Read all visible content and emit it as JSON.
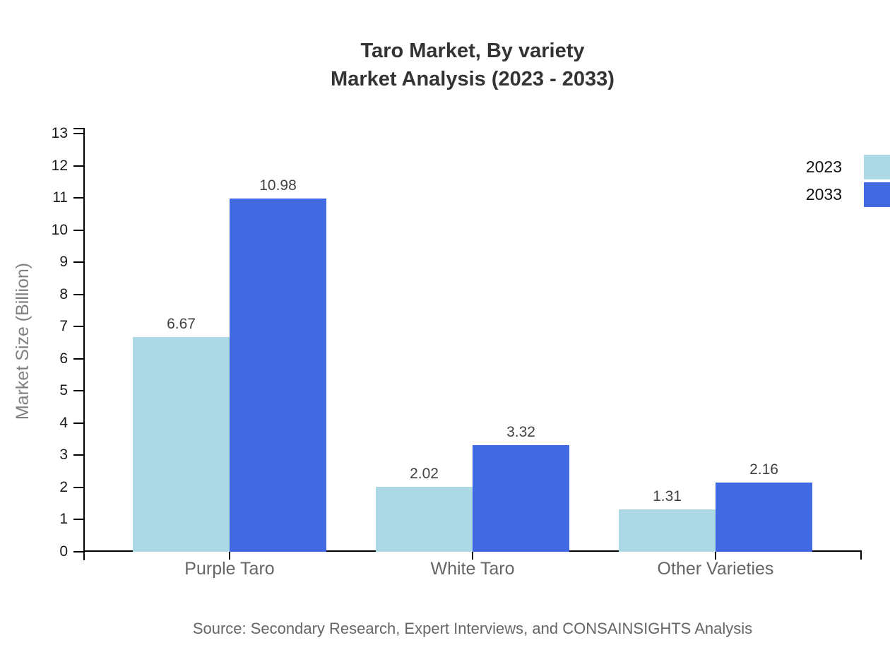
{
  "figure": {
    "title_line1": "Taro Market, By variety",
    "title_line2": "Market Analysis (2023 - 2033)",
    "source": "Source: Secondary Research, Expert Interviews, and CONSAINSIGHTS Analysis"
  },
  "chart_data": {
    "type": "bar",
    "title": "Taro Market, By variety - Market Analysis (2023 - 2033)",
    "categories": [
      "Purple Taro",
      "White Taro",
      "Other Varieties"
    ],
    "series": [
      {
        "name": "2023",
        "color": "#ADD8E6",
        "values": [
          6.67,
          2.02,
          1.31
        ]
      },
      {
        "name": "2033",
        "color": "#4169E1",
        "values": [
          10.98,
          3.32,
          2.16
        ]
      }
    ],
    "ylabel": "Market Size (Billion)",
    "xlabel": "",
    "ylim": [
      0,
      13
    ],
    "ytick_step": 1,
    "grid": false,
    "legend_position": "top-right",
    "value_labels": true
  },
  "colors": {
    "series_2023": "#ADD8E6",
    "series_2033": "#4169E1",
    "axis": "#000000",
    "title_text": "#333333",
    "tick_text": "#1a1a1a",
    "category_text": "#666666",
    "value_text": "#424242",
    "source_text": "#666666",
    "background": "#ffffff"
  }
}
